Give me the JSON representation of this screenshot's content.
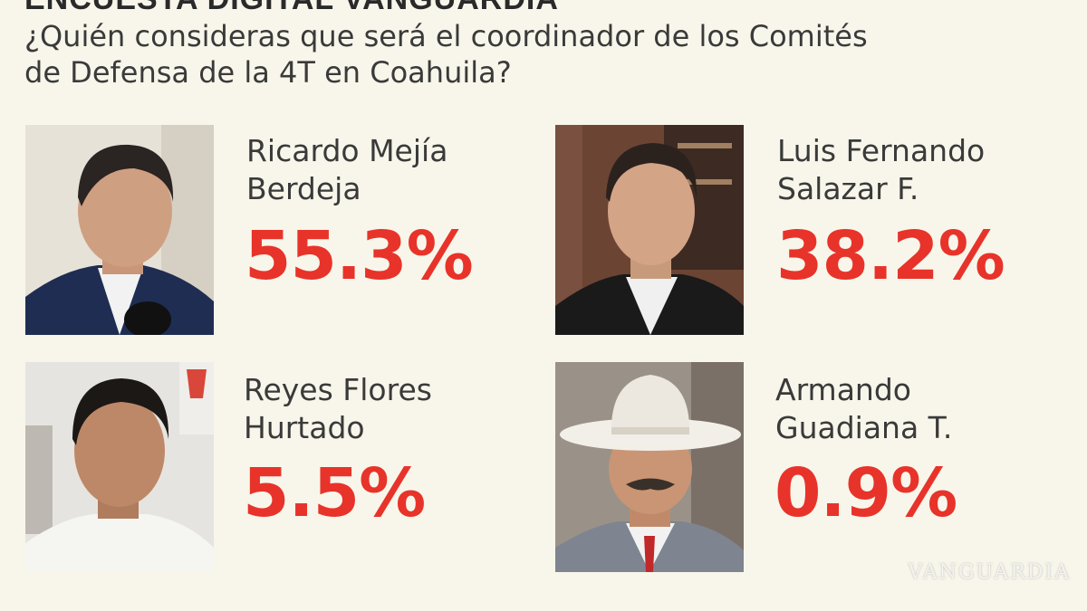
{
  "header": {
    "title": "ENCUESTA DIGITAL VANGUARDIA",
    "question_line1": "¿Quién consideras que será el coordinador de los Comités",
    "question_line2": "de Defensa de la 4T en Coahuila?"
  },
  "candidates": [
    {
      "name_line1": "Ricardo Mejía",
      "name_line2": "Berdeja",
      "percent": "55.3%",
      "value": 55.3
    },
    {
      "name_line1": "Luis Fernando",
      "name_line2": "Salazar F.",
      "percent": "38.2%",
      "value": 38.2
    },
    {
      "name_line1": "Reyes Flores",
      "name_line2": "Hurtado",
      "percent": "5.5%",
      "value": 5.5
    },
    {
      "name_line1": "Armando",
      "name_line2": "Guadiana T.",
      "percent": "0.9%",
      "value": 0.9
    }
  ],
  "watermark": "VANGUARDIA",
  "colors": {
    "background": "#f8f6ea",
    "accent_red": "#e8332a",
    "text": "#3a3a3a"
  }
}
